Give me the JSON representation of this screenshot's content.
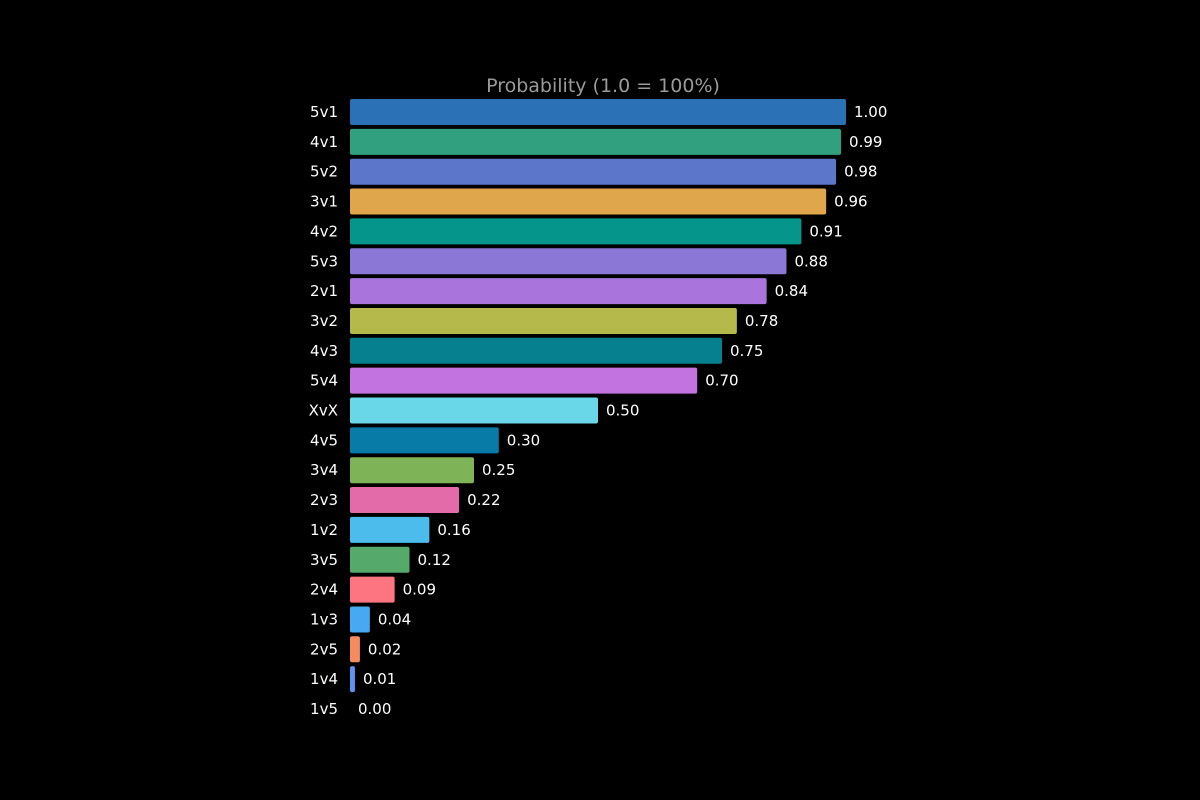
{
  "chart_data": {
    "type": "bar",
    "orientation": "horizontal",
    "title": "Probability (1.0 = 100%)",
    "xlabel": "",
    "ylabel": "",
    "xlim": [
      0,
      1.0
    ],
    "grid": false,
    "categories": [
      "5v1",
      "4v1",
      "5v2",
      "3v1",
      "4v2",
      "5v3",
      "2v1",
      "3v2",
      "4v3",
      "5v4",
      "XvX",
      "4v5",
      "3v4",
      "2v3",
      "1v2",
      "3v5",
      "2v4",
      "1v3",
      "2v5",
      "1v4",
      "1v5"
    ],
    "values": [
      1.0,
      0.99,
      0.98,
      0.96,
      0.91,
      0.88,
      0.84,
      0.78,
      0.75,
      0.7,
      0.5,
      0.3,
      0.25,
      0.22,
      0.16,
      0.12,
      0.09,
      0.04,
      0.02,
      0.01,
      0.0
    ],
    "value_labels": [
      "1.00",
      "0.99",
      "0.98",
      "0.96",
      "0.91",
      "0.88",
      "0.84",
      "0.78",
      "0.75",
      "0.70",
      "0.50",
      "0.30",
      "0.25",
      "0.22",
      "0.16",
      "0.12",
      "0.09",
      "0.04",
      "0.02",
      "0.01",
      "0.00"
    ],
    "colors": [
      "#2a71b5",
      "#31a07e",
      "#5c76c9",
      "#dfa64b",
      "#06958a",
      "#8a77d6",
      "#a975dc",
      "#b5b84a",
      "#06808f",
      "#c373e0",
      "#6ad7e9",
      "#087ca6",
      "#7fb357",
      "#e36ba9",
      "#4cbcec",
      "#55a96a",
      "#fd7580",
      "#47a9f1",
      "#f48c60",
      "#5b93ee",
      "#5b93ee"
    ]
  }
}
